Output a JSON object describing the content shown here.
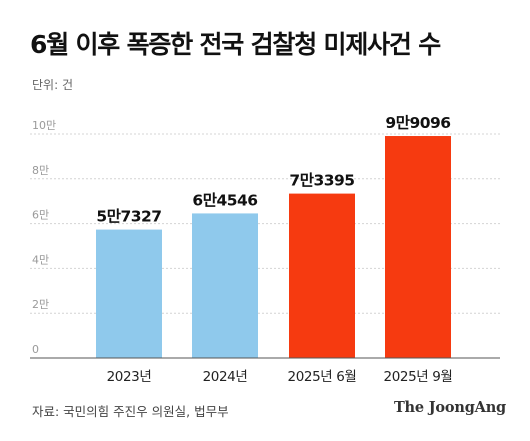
{
  "title": "6월 이후 폭증한 전국 검찰청 미제사건 수",
  "unit_label": "단위: 건",
  "source": "자료: 국민의힘 주진우 의원실, 법무부",
  "brand": "The JoongAng",
  "colors": {
    "blue": "#8fc9ec",
    "red": "#f63a10",
    "grid": "#d4d4d4",
    "tick": "#9a9a9a",
    "axis": "#555555"
  },
  "chart_data": {
    "type": "bar",
    "categories": [
      "2023년",
      "2024년",
      "2025년 6월",
      "2025년 9월"
    ],
    "values": [
      57327,
      64546,
      73395,
      99096
    ],
    "data_labels": [
      "5만7327",
      "6만4546",
      "7만3395",
      "9만9096"
    ],
    "bar_colors": [
      "blue",
      "blue",
      "red",
      "red"
    ],
    "ylim": [
      0,
      100000
    ],
    "yticks": [
      0,
      20000,
      40000,
      60000,
      80000,
      100000
    ],
    "ytick_labels": [
      "0",
      "2만",
      "4만",
      "6만",
      "8만",
      "10만"
    ],
    "grid": true,
    "title": "6월 이후 폭증한 전국 검찰청 미제사건 수"
  }
}
